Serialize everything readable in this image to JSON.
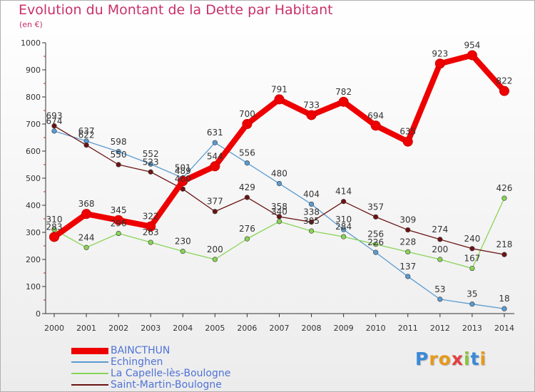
{
  "chart_data": {
    "type": "line",
    "title": "Evolution du Montant de la Dette par Habitant",
    "subtitle": "(en €)",
    "x": [
      "2000",
      "2001",
      "2002",
      "2003",
      "2004",
      "2005",
      "2006",
      "2007",
      "2008",
      "2009",
      "2010",
      "2011",
      "2012",
      "2013",
      "2014"
    ],
    "ylim": [
      0,
      1000
    ],
    "yticks": [
      "0",
      "100",
      "200",
      "300",
      "400",
      "500",
      "600",
      "700",
      "800",
      "900",
      "1000"
    ],
    "grid": false,
    "legend_position": "bottom-left",
    "series": [
      {
        "name": "BAINCTHUN",
        "color": "#ee0000",
        "emphasis": true,
        "values": [
          283,
          368,
          345,
          322,
          489,
          544,
          700,
          791,
          733,
          782,
          694,
          635,
          923,
          954,
          822
        ],
        "labels": [
          "283",
          "368",
          "345",
          "322",
          "489",
          "544",
          "700",
          "791",
          "733",
          "782",
          "694",
          "635",
          "923",
          "954",
          "822"
        ]
      },
      {
        "name": "Echinghen",
        "color": "#5a9bd0",
        "values": [
          674,
          637,
          598,
          552,
          501,
          631,
          556,
          480,
          404,
          310,
          226,
          137,
          53,
          35,
          18
        ],
        "labels": [
          "674",
          "637",
          "598",
          "552",
          "501",
          "631",
          "556",
          "480",
          "404",
          "310",
          "226",
          "137",
          "53",
          "35",
          "18"
        ]
      },
      {
        "name": "La Capelle-lès-Boulogne",
        "color": "#88d455",
        "values": [
          310,
          244,
          296,
          263,
          230,
          200,
          276,
          340,
          305,
          284,
          256,
          228,
          200,
          167,
          426
        ],
        "labels": [
          "310",
          "244",
          "296",
          "263",
          "230",
          "200",
          "276",
          "340",
          "305",
          "284",
          "256",
          "228",
          "200",
          "167",
          "426"
        ]
      },
      {
        "name": "Saint-Martin-Boulogne",
        "color": "#6b1414",
        "values": [
          693,
          622,
          550,
          523,
          460,
          377,
          429,
          358,
          338,
          414,
          357,
          309,
          274,
          240,
          218
        ],
        "labels": [
          "693",
          "622",
          "550",
          "523",
          "460",
          "377",
          "429",
          "358",
          "338",
          "414",
          "357",
          "309",
          "274",
          "240",
          "218"
        ]
      }
    ]
  },
  "brand": {
    "letters": [
      "P",
      "r",
      "o",
      "x",
      "i",
      "t",
      "i"
    ],
    "colors": [
      "#3a8ad8",
      "#e69a1a",
      "#e69a1a",
      "#e34040",
      "#8ac43c",
      "#3a8ad8",
      "#e69a1a"
    ]
  }
}
